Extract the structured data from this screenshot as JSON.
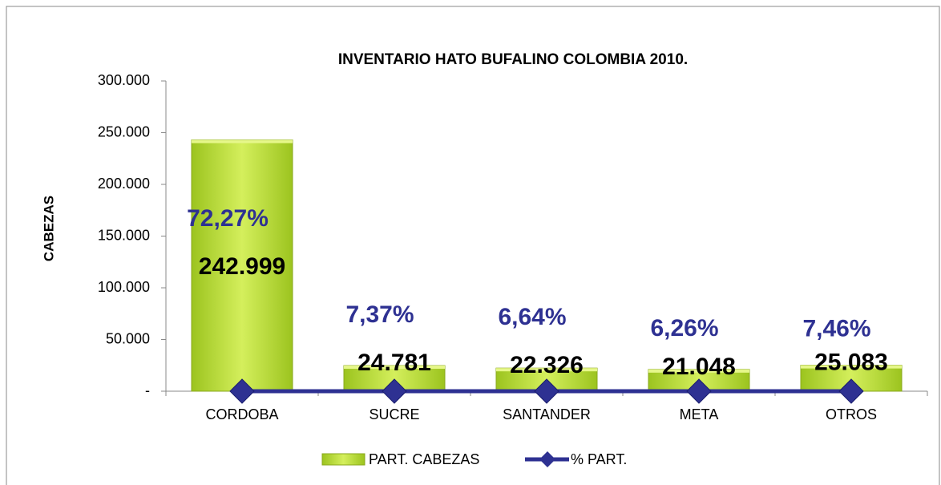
{
  "chart_data": {
    "type": "bar",
    "title": "INVENTARIO HATO BUFALINO COLOMBIA 2010.",
    "y_label": "CABEZAS",
    "categories": [
      "CORDOBA",
      "SUCRE",
      "SANTANDER",
      "META",
      "OTROS"
    ],
    "series": [
      {
        "name": "PART. CABEZAS",
        "type": "bar",
        "color": "#b5d930",
        "values": [
          242999,
          24781,
          22326,
          21048,
          25083
        ],
        "value_labels": [
          "242.999",
          "24.781",
          "22.326",
          "21.048",
          "25.083"
        ]
      },
      {
        "name": "% PART.",
        "type": "line",
        "color": "#2e3192",
        "values": [
          0.7227,
          0.0737,
          0.0664,
          0.0626,
          0.0746
        ],
        "value_labels": [
          "72,27%",
          "7,37%",
          "6,64%",
          "6,26%",
          "7,46%"
        ]
      }
    ],
    "ylim": [
      0,
      300000
    ],
    "yticks": [
      {
        "value": 0,
        "label": "-"
      },
      {
        "value": 50000,
        "label": "50.000"
      },
      {
        "value": 100000,
        "label": "100.000"
      },
      {
        "value": 150000,
        "label": "150.000"
      },
      {
        "value": 200000,
        "label": "200.000"
      },
      {
        "value": 250000,
        "label": "250.000"
      },
      {
        "value": 300000,
        "label": "300.000"
      }
    ],
    "grid": false,
    "legend": "bottom"
  }
}
